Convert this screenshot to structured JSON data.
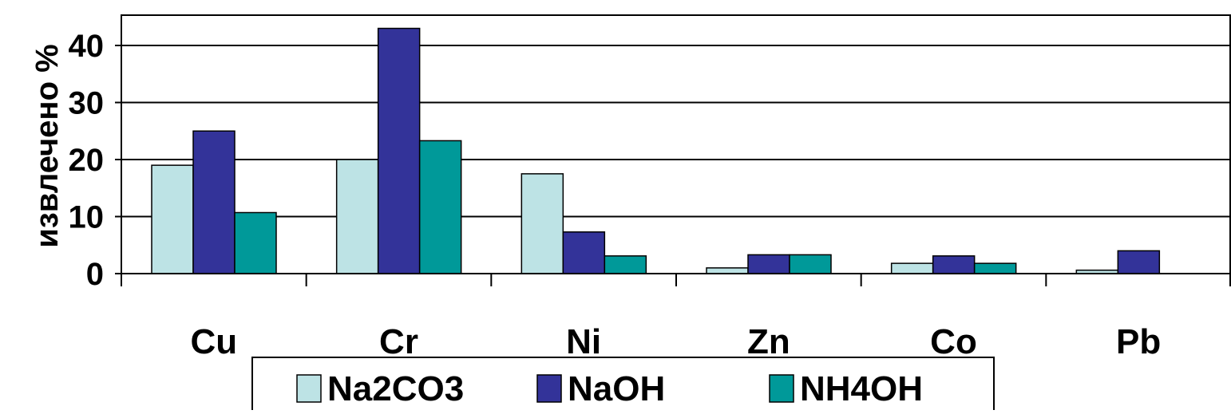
{
  "chart_data": {
    "type": "bar",
    "title": "",
    "xlabel": "",
    "ylabel": "извлечено %",
    "categories": [
      "Cu",
      "Cr",
      "Ni",
      "Zn",
      "Co",
      "Pb"
    ],
    "series": [
      {
        "name": "Na2CO3",
        "color": "#bde3e5",
        "values": [
          19,
          20,
          17.5,
          1,
          1.8,
          0.6
        ]
      },
      {
        "name": "NaOH",
        "color": "#333399",
        "values": [
          25,
          43,
          7.3,
          3.3,
          3.1,
          4
        ]
      },
      {
        "name": "NH4OH",
        "color": "#009999",
        "values": [
          10.7,
          23.3,
          3.1,
          3.3,
          1.8,
          0
        ]
      }
    ],
    "ylim": [
      0,
      45
    ],
    "yticks": [
      0,
      10,
      20,
      30,
      40
    ],
    "grid": true,
    "legend_position": "bottom"
  }
}
